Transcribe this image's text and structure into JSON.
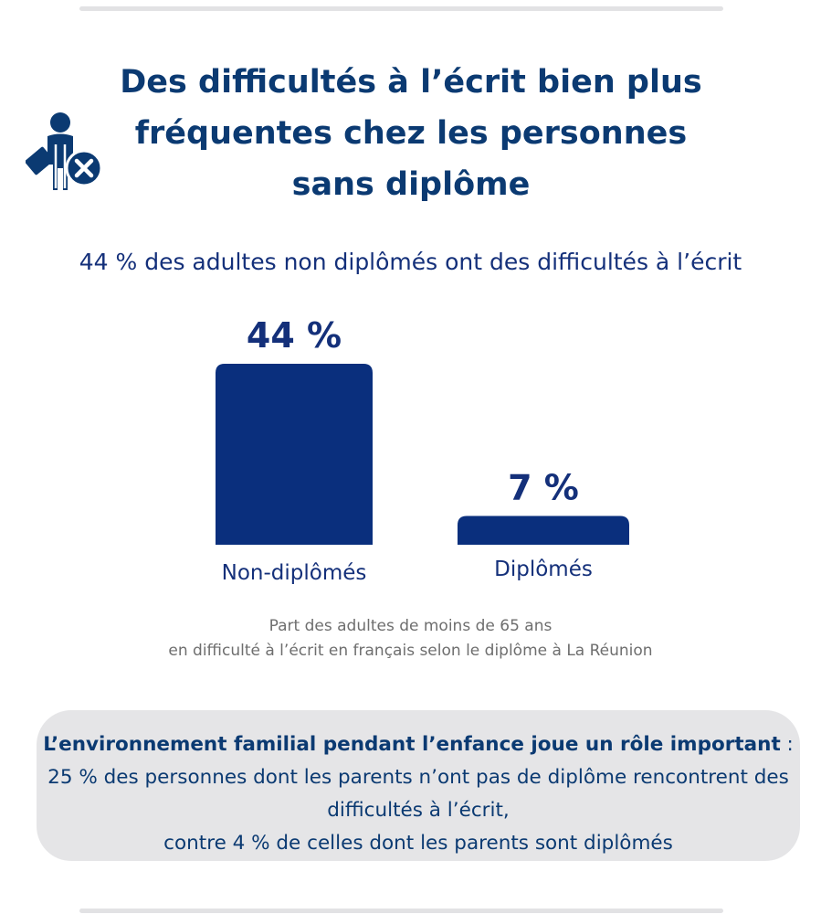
{
  "title": {
    "line1": "Des difficultés à l’écrit bien plus",
    "line2": "fréquentes chez les personnes",
    "line3": "sans diplôme"
  },
  "icon": "person-without-diploma-icon",
  "subtitle": "44 % des adultes non diplômés ont des difficultés à l’écrit",
  "chart_data": {
    "type": "bar",
    "title": "44 % des adultes non diplômés ont des difficultés à l’écrit",
    "categories": [
      "Non-diplômés",
      "Diplômés"
    ],
    "values": [
      44,
      7
    ],
    "value_labels": [
      "44 %",
      "7 %"
    ],
    "unit": "%",
    "ylim": [
      0,
      44
    ],
    "xlabel": "",
    "ylabel": "",
    "grid": false,
    "bar_color": "#0a2f7d",
    "label_color": "#14307a"
  },
  "caption": {
    "line1": "Part des adultes de moins de 65 ans",
    "line2": "en difficulté à l’écrit en français selon le diplôme à La Réunion"
  },
  "callout": {
    "bold_part": "L’environnement familial pendant l’enfance joue un rôle important",
    "rest_line1": " : 25 % des personnes dont les parents n’ont pas de diplôme rencontrent des difficultés à l’écrit,",
    "rest_line2": "contre 4 % de celles dont les parents sont diplômés"
  },
  "colors": {
    "title": "#0b3a72",
    "bar": "#0a2f7d",
    "caption": "#6e6e6e",
    "callout_bg": "#e5e5e7",
    "rule": "#e2e2e4"
  }
}
